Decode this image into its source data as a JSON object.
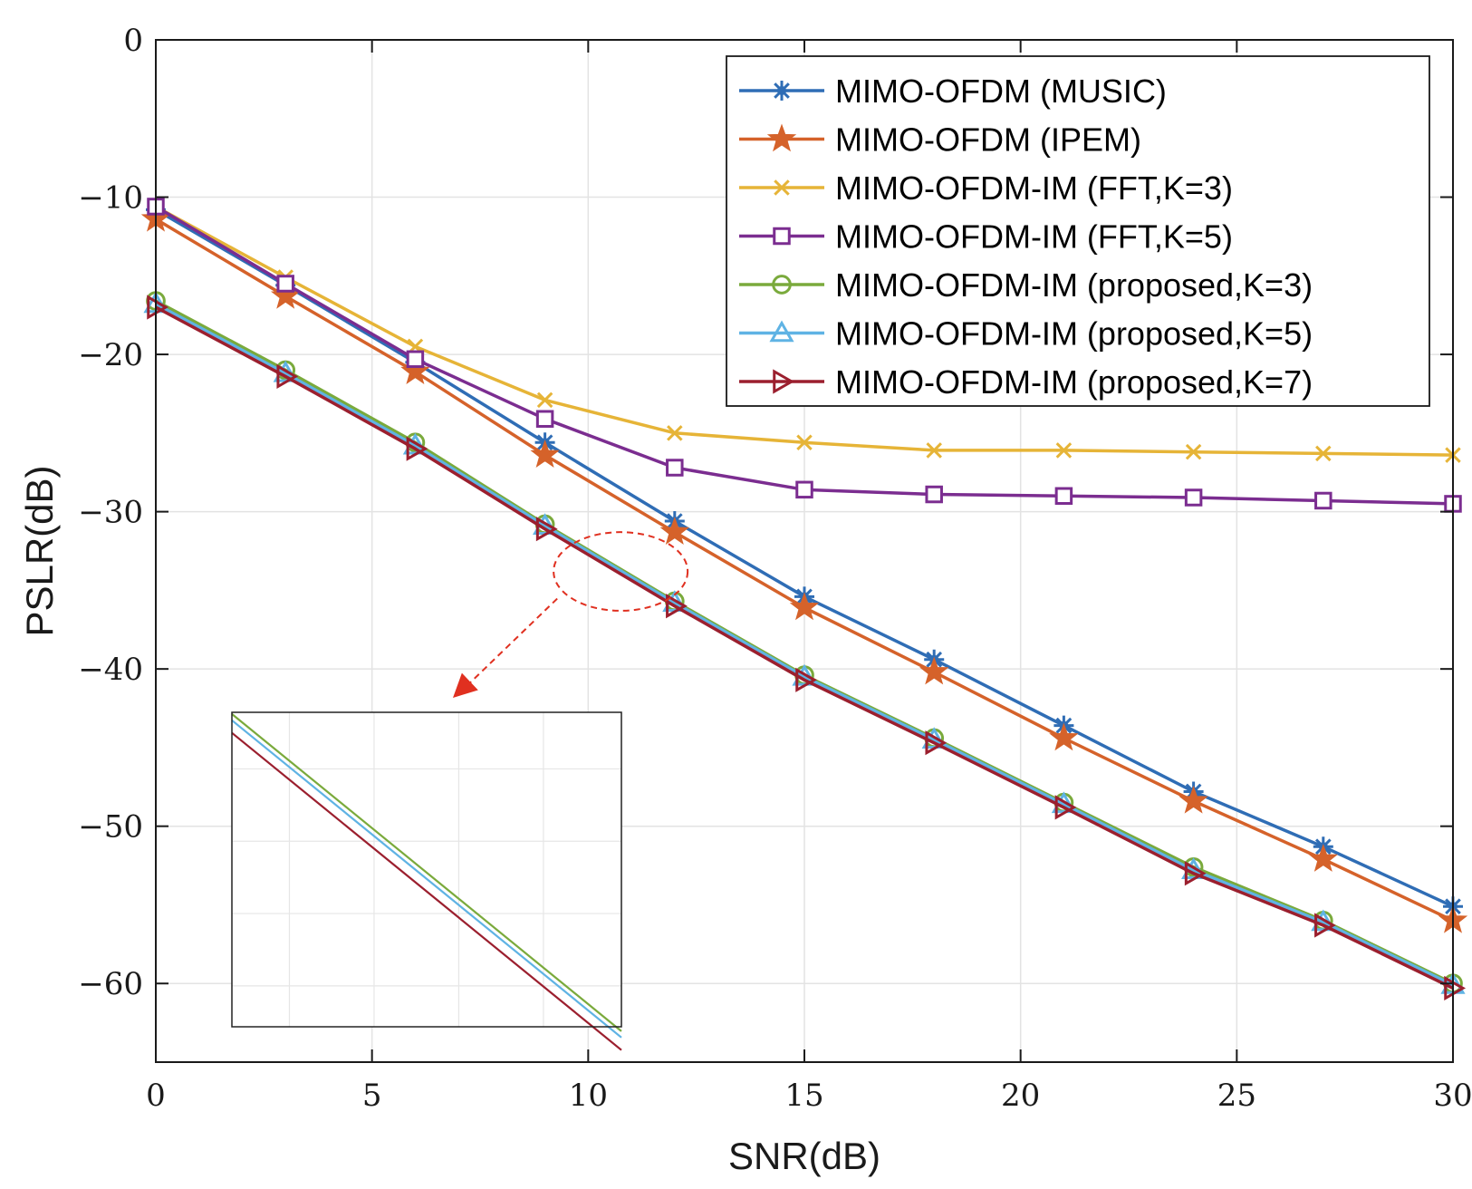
{
  "chart_data": {
    "type": "line",
    "title": "",
    "xlabel": "SNR(dB)",
    "ylabel": "PSLR(dB)",
    "xlim": [
      0,
      30
    ],
    "ylim": [
      -65,
      0
    ],
    "xticks": [
      0,
      5,
      10,
      15,
      20,
      25,
      30
    ],
    "yticks": [
      0,
      -10,
      -20,
      -30,
      -40,
      -50,
      -60
    ],
    "xtick_labels": [
      "0",
      "5",
      "10",
      "15",
      "20",
      "25",
      "30"
    ],
    "ytick_labels": [
      "0",
      "−10",
      "−20",
      "−30",
      "−40",
      "−50",
      "−60"
    ],
    "grid": true,
    "legend_position": "top-right",
    "x": [
      0,
      3,
      6,
      9,
      12,
      15,
      18,
      21,
      24,
      27,
      30
    ],
    "series": [
      {
        "name": "MIMO-OFDM (MUSIC)",
        "color": "#2f6db5",
        "marker": "asterisk",
        "values": [
          -10.8,
          -15.6,
          -20.5,
          -25.6,
          -30.6,
          -35.4,
          -39.4,
          -43.6,
          -47.8,
          -51.3,
          -55.1
        ]
      },
      {
        "name": "MIMO-OFDM (IPEM)",
        "color": "#d5622a",
        "marker": "star",
        "values": [
          -11.4,
          -16.3,
          -21.1,
          -26.4,
          -31.3,
          -36.1,
          -40.2,
          -44.4,
          -48.4,
          -52.1,
          -56.0
        ]
      },
      {
        "name": "MIMO-OFDM-IM (FFT,K=3)",
        "color": "#e6b437",
        "marker": "cross",
        "values": [
          -10.6,
          -15.1,
          -19.5,
          -22.9,
          -25.0,
          -25.6,
          -26.1,
          -26.1,
          -26.2,
          -26.3,
          -26.4
        ]
      },
      {
        "name": "MIMO-OFDM-IM (FFT,K=5)",
        "color": "#7b2d90",
        "marker": "square",
        "values": [
          -10.6,
          -15.5,
          -20.3,
          -24.1,
          -27.2,
          -28.6,
          -28.9,
          -29.0,
          -29.1,
          -29.3,
          -29.5
        ]
      },
      {
        "name": "MIMO-OFDM-IM (proposed,K=3)",
        "color": "#7aaa3c",
        "marker": "circle",
        "values": [
          -16.6,
          -21.0,
          -25.6,
          -30.8,
          -35.7,
          -40.4,
          -44.4,
          -48.5,
          -52.6,
          -56.0,
          -60.0
        ]
      },
      {
        "name": "MIMO-OFDM-IM (proposed,K=5)",
        "color": "#5fb3e4",
        "marker": "triangle-up",
        "values": [
          -16.8,
          -21.2,
          -25.8,
          -30.9,
          -35.8,
          -40.5,
          -44.5,
          -48.6,
          -52.8,
          -56.1,
          -60.1
        ]
      },
      {
        "name": "MIMO-OFDM-IM (proposed,K=7)",
        "color": "#9b1f2e",
        "marker": "triangle-right",
        "values": [
          -17.0,
          -21.4,
          -26.0,
          -31.1,
          -36.0,
          -40.7,
          -44.7,
          -48.8,
          -53.0,
          -56.3,
          -60.3
        ]
      }
    ],
    "annotations": [
      {
        "type": "ellipse-callout",
        "color": "#e03020",
        "x_range": [
          9.2,
          12.3
        ],
        "y_range": [
          -31.3,
          -36.3
        ]
      },
      {
        "type": "inset-zoom",
        "description": "magnified proposed curves"
      }
    ]
  }
}
